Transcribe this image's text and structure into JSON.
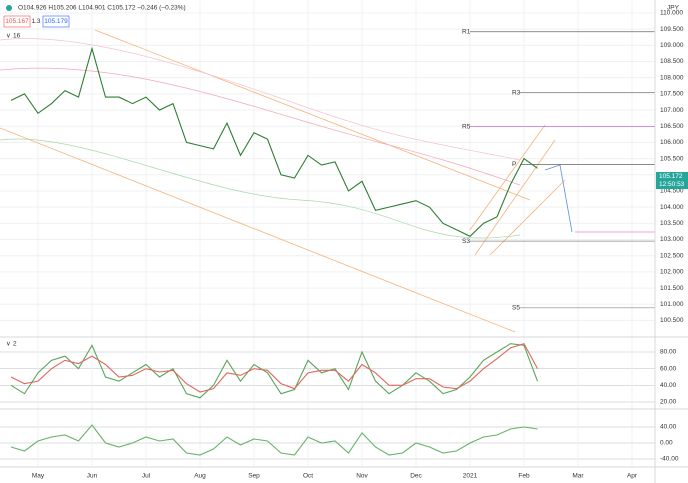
{
  "header": {
    "ohlc": "O104.926 H105.206 L104.901 C105.172 −0.246 (−0.23%)",
    "bid": "105.167",
    "spread": "1.3",
    "ask": "105.179",
    "currency": "JPY",
    "indicator_count": "16",
    "pane_count": "2",
    "price_tag": "105.172",
    "countdown": "12:50:53"
  },
  "chart_data": [
    {
      "type": "line",
      "color": "#2e7d32",
      "grid": true,
      "categories": [
        null,
        null,
        "May",
        null,
        null,
        null,
        "Jun",
        null,
        null,
        null,
        "Jul",
        null,
        null,
        null,
        "Aug",
        null,
        null,
        null,
        "Sep",
        null,
        null,
        null,
        "Oct",
        null,
        null,
        null,
        "Nov",
        null,
        null,
        null,
        "Dec",
        null,
        null,
        null,
        "2021",
        null,
        null,
        null,
        "Feb",
        null,
        null,
        null,
        "Mar",
        null,
        null,
        null,
        "Apr",
        null
      ],
      "values": [
        107.3,
        107.5,
        106.9,
        107.2,
        107.6,
        107.4,
        108.9,
        107.4,
        107.4,
        107.2,
        107.4,
        107.0,
        107.2,
        106.0,
        105.9,
        105.8,
        106.6,
        105.6,
        106.3,
        106.1,
        105.0,
        104.9,
        105.6,
        105.3,
        105.4,
        104.5,
        104.8,
        103.9,
        104.0,
        104.1,
        104.2,
        104.0,
        103.5,
        103.3,
        103.1,
        103.5,
        103.7,
        104.7,
        105.5,
        105.2,
        null,
        null,
        null,
        null,
        null,
        null,
        null,
        null
      ],
      "ylim": [
        100.05,
        110.4
      ],
      "yticks": [
        {
          "value": 100.5,
          "label": "100.500"
        },
        {
          "value": 101,
          "label": "101.000"
        },
        {
          "value": 101.5,
          "label": "101.500"
        },
        {
          "value": 102,
          "label": "102.000"
        },
        {
          "value": 102.5,
          "label": "102.500"
        },
        {
          "value": 103,
          "label": "103.000"
        },
        {
          "value": 103.5,
          "label": "103.500"
        },
        {
          "value": 104,
          "label": "104.000"
        },
        {
          "value": 104.5,
          "label": "104.500"
        },
        {
          "value": 105,
          "label": "105.000"
        },
        {
          "value": 105.5,
          "label": "105.500"
        },
        {
          "value": 106,
          "label": "106.000"
        },
        {
          "value": 106.5,
          "label": "106.500"
        },
        {
          "value": 107,
          "label": "107.000"
        },
        {
          "value": 107.5,
          "label": "107.500"
        },
        {
          "value": 108,
          "label": "108.000"
        },
        {
          "value": 108.5,
          "label": "108.500"
        },
        {
          "value": 109,
          "label": "109.000"
        },
        {
          "value": 109.5,
          "label": "109.500"
        },
        {
          "value": 110,
          "label": "110.000"
        }
      ],
      "levels": [
        {
          "value": 109.42,
          "label": "R1",
          "color": "#666666"
        },
        {
          "value": 107.54,
          "label": "R3",
          "color": "#666666"
        },
        {
          "value": 106.49,
          "label": "R5",
          "color": "#d04fd0"
        },
        {
          "value": 105.32,
          "label": "P",
          "color": "#444444"
        },
        {
          "value": 102.95,
          "label": "S3",
          "color": "#888888"
        },
        {
          "value": 100.89,
          "label": "S5",
          "color": "#888888"
        }
      ]
    },
    {
      "type": "line",
      "grid": false,
      "series": [
        {
          "color": "#5aa55a",
          "values": [
            40,
            30,
            55,
            70,
            75,
            60,
            88,
            50,
            45,
            55,
            65,
            50,
            60,
            30,
            25,
            40,
            70,
            45,
            65,
            55,
            30,
            35,
            70,
            55,
            60,
            35,
            80,
            45,
            30,
            40,
            55,
            45,
            30,
            35,
            50,
            70,
            80,
            90,
            88,
            45,
            null,
            null,
            null,
            null,
            null,
            null,
            null,
            null
          ]
        },
        {
          "color": "#e0665e",
          "values": [
            50,
            42,
            45,
            60,
            70,
            66,
            75,
            65,
            50,
            52,
            60,
            56,
            58,
            42,
            32,
            36,
            55,
            52,
            60,
            58,
            42,
            36,
            55,
            58,
            58,
            45,
            65,
            55,
            40,
            40,
            48,
            48,
            38,
            36,
            45,
            60,
            72,
            85,
            90,
            60,
            null,
            null,
            null,
            null,
            null,
            null,
            null,
            null
          ]
        }
      ],
      "ylim": [
        12.8,
        95.6
      ],
      "yticks": [
        {
          "value": 20,
          "label": "20.00"
        },
        {
          "value": 40,
          "label": "40.00"
        },
        {
          "value": 60,
          "label": "60.00"
        },
        {
          "value": 80,
          "label": "80.00"
        }
      ]
    },
    {
      "type": "line",
      "grid": false,
      "color": "#66b366",
      "values": [
        -10,
        -20,
        5,
        15,
        20,
        5,
        45,
        0,
        -10,
        0,
        15,
        5,
        10,
        -25,
        -30,
        -15,
        15,
        -5,
        10,
        5,
        -25,
        -30,
        15,
        0,
        5,
        -25,
        25,
        -10,
        -30,
        -25,
        0,
        -10,
        -25,
        -20,
        0,
        15,
        20,
        35,
        40,
        35,
        null,
        null,
        null,
        null,
        null,
        null,
        null,
        null
      ],
      "ylim": [
        -57.5,
        80
      ],
      "yticks": [
        {
          "value": -40,
          "label": "-40.00"
        },
        {
          "value": 0,
          "label": "0.00"
        },
        {
          "value": 40,
          "label": "40.00"
        }
      ]
    }
  ]
}
